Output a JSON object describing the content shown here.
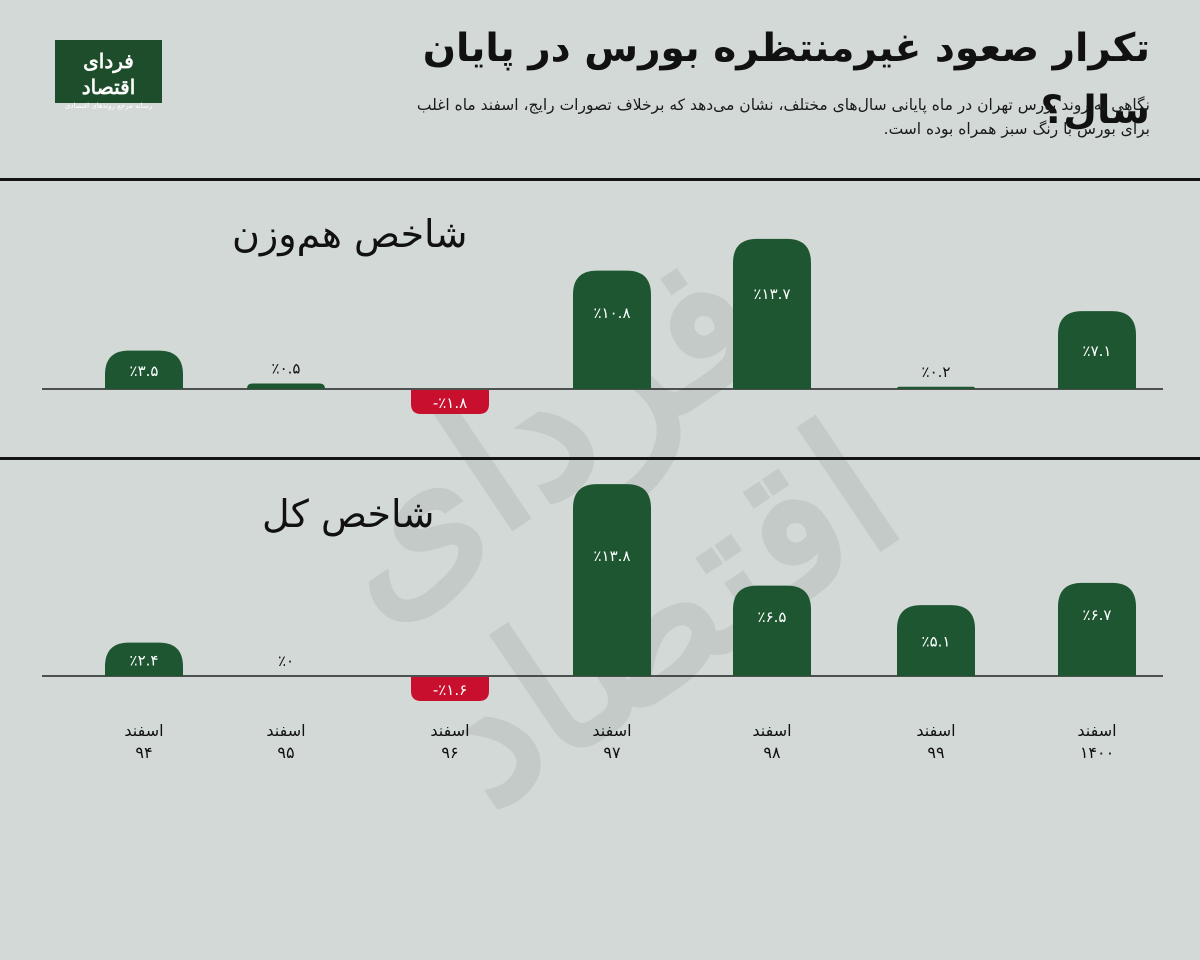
{
  "brand": {
    "name": "فردای اقتصاد",
    "tagline": "رسانه مرجع روندهای اقتصادی"
  },
  "title": "تکرار صعود غیرمنتظره بورس در پایان سال؟",
  "subtitle": "نگاهی به روند بورس تهران در ماه پایانی سال‌های مختلف، نشان می‌دهد که برخلاف تصورات رایج، اسفند ماه اغلب برای بورس با رنگ سبز همراه بوده است.",
  "watermark": "فردای اقتصاد",
  "colors": {
    "positive": "#1e5632",
    "negative": "#c8102e",
    "background": "#d3d9d6"
  },
  "chart_data": [
    {
      "type": "bar",
      "title": "شاخص هم‌وزن",
      "categories": [
        "اسفند ۹۴",
        "اسفند ۹۵",
        "اسفند ۹۶",
        "اسفند ۹۷",
        "اسفند ۹۸",
        "اسفند ۹۹",
        "اسفند ۱۴۰۰"
      ],
      "values": [
        3.5,
        0.5,
        -1.8,
        10.8,
        13.7,
        0.2,
        7.1
      ],
      "labels": [
        "٪۳.۵",
        "٪۰.۵",
        "-٪۱.۸",
        "٪۱۰.۸",
        "٪۱۳.۷",
        "٪۰.۲",
        "٪۷.۱"
      ],
      "unit": "%"
    },
    {
      "type": "bar",
      "title": "شاخص کل",
      "categories": [
        "اسفند ۹۴",
        "اسفند ۹۵",
        "اسفند ۹۶",
        "اسفند ۹۷",
        "اسفند ۹۸",
        "اسفند ۹۹",
        "اسفند ۱۴۰۰"
      ],
      "values": [
        2.4,
        0,
        -1.6,
        13.8,
        6.5,
        5.1,
        6.7
      ],
      "labels": [
        "٪۲.۴",
        "٪۰",
        "-٪۱.۶",
        "٪۱۳.۸",
        "٪۶.۵",
        "٪۵.۱",
        "٪۶.۷"
      ],
      "unit": "%"
    }
  ],
  "x_labels": [
    {
      "month": "اسفند",
      "year": "۹۴"
    },
    {
      "month": "اسفند",
      "year": "۹۵"
    },
    {
      "month": "اسفند",
      "year": "۹۶"
    },
    {
      "month": "اسفند",
      "year": "۹۷"
    },
    {
      "month": "اسفند",
      "year": "۹۸"
    },
    {
      "month": "اسفند",
      "year": "۹۹"
    },
    {
      "month": "اسفند",
      "year": "۱۴۰۰"
    }
  ]
}
